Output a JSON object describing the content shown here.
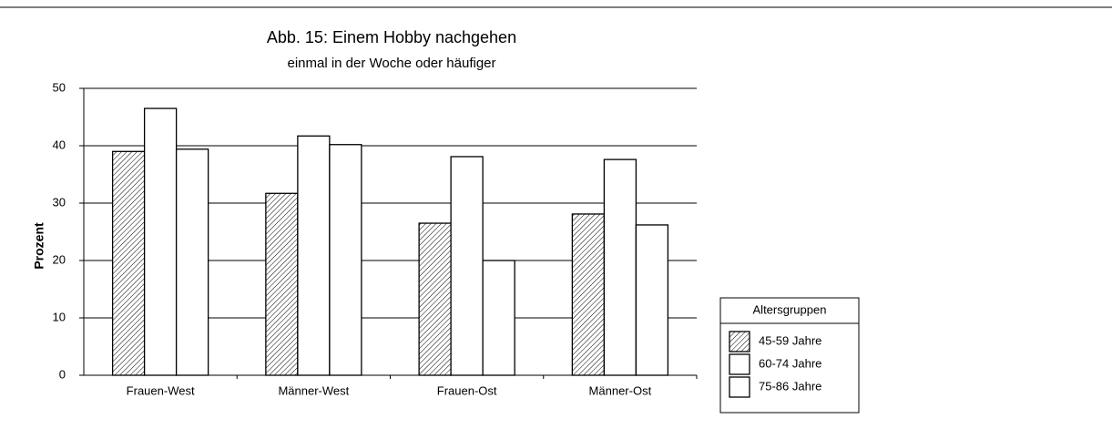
{
  "chart_data": {
    "type": "bar",
    "title": "Abb. 15: Einem Hobby nachgehen",
    "subtitle": "einmal in der Woche oder häufiger",
    "y_label": "Prozent",
    "categories": [
      "Frauen-West",
      "Männer-West",
      "Frauen-Ost",
      "Männer-Ost"
    ],
    "series": [
      {
        "name": "45-59 Jahre",
        "color": "#000000",
        "hatch": true,
        "values": [
          39.0,
          31.7,
          26.5,
          28.1
        ]
      },
      {
        "name": "60-74 Jahre",
        "color": "#ffffff",
        "values": [
          46.5,
          41.7,
          38.1,
          37.6
        ]
      },
      {
        "name": "75-86 Jahre",
        "color": "#ffffff",
        "values": [
          39.4,
          40.2,
          20.0,
          26.2
        ]
      }
    ],
    "legend_title": "Altersgruppen",
    "ylim": [
      0,
      50
    ],
    "yticks": [
      0,
      10,
      20,
      30,
      40,
      50
    ],
    "grid": true
  }
}
